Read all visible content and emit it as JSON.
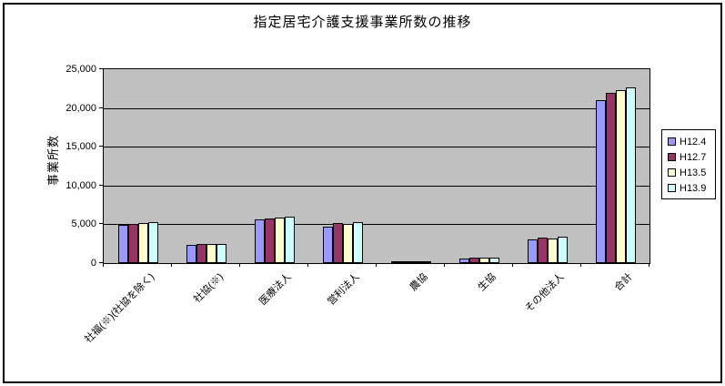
{
  "chart_data": {
    "type": "bar",
    "title": "指定居宅介護支援事業所数の推移",
    "ylabel": "事業所数",
    "categories": [
      "社福(※)(社協を除く)",
      "社協(※)",
      "医療法人",
      "営利法人",
      "農協",
      "生協",
      "その他法人",
      "合計"
    ],
    "series": [
      {
        "name": "H12.4",
        "color": "#9999FF",
        "values": [
          4900,
          2350,
          5600,
          4700,
          200,
          550,
          3100,
          21050
        ]
      },
      {
        "name": "H12.7",
        "color": "#993366",
        "values": [
          5000,
          2500,
          5800,
          5150,
          200,
          700,
          3250,
          21900
        ]
      },
      {
        "name": "H13.5",
        "color": "#FFFFCC",
        "values": [
          5200,
          2450,
          5900,
          5100,
          200,
          650,
          3200,
          22300
        ]
      },
      {
        "name": "H13.9",
        "color": "#CCFFFF",
        "values": [
          5300,
          2450,
          6000,
          5300,
          250,
          750,
          3350,
          22700
        ]
      }
    ],
    "ylim": [
      0,
      25000
    ],
    "ytick_step": 5000,
    "ytick_labels": [
      "0",
      "5,000",
      "10,000",
      "15,000",
      "20,000",
      "25,000"
    ],
    "grid": true,
    "legend_position": "right",
    "colors": {
      "plot_bg": "#C0C0C0",
      "chart_bg": "#FFFFFF",
      "axis": "#000000"
    }
  }
}
